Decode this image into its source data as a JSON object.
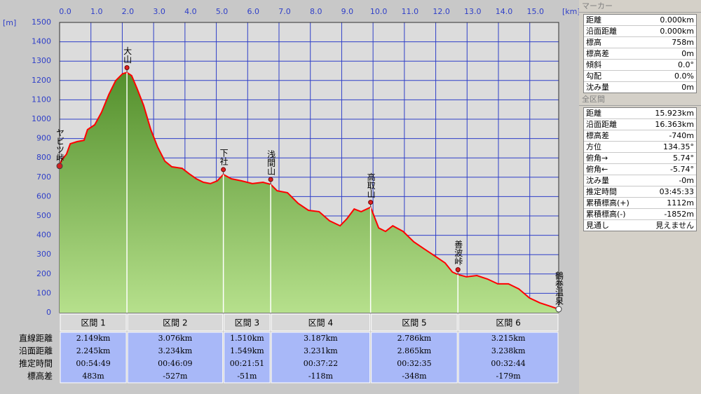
{
  "chart_data": {
    "type": "area",
    "x": [
      0,
      0.07,
      0.22,
      0.34,
      0.56,
      0.78,
      0.89,
      1.12,
      1.34,
      1.57,
      1.79,
      2.01,
      2.149,
      2.3,
      2.46,
      2.68,
      2.91,
      3.13,
      3.36,
      3.58,
      3.91,
      4.14,
      4.36,
      4.59,
      4.81,
      5.03,
      5.225,
      5.48,
      5.81,
      6.15,
      6.49,
      6.735,
      6.94,
      7.27,
      7.61,
      7.94,
      8.28,
      8.61,
      8.95,
      9.17,
      9.4,
      9.62,
      9.922,
      10.18,
      10.4,
      10.63,
      10.96,
      11.3,
      11.63,
      11.97,
      12.3,
      12.53,
      12.708,
      12.98,
      13.31,
      13.65,
      13.98,
      14.32,
      14.65,
      14.99,
      15.32,
      15.66,
      15.923
    ],
    "values": [
      758,
      790,
      819,
      873,
      884,
      891,
      946,
      971,
      1036,
      1127,
      1199,
      1235,
      1241,
      1225,
      1163,
      1072,
      946,
      855,
      783,
      754,
      746,
      717,
      692,
      674,
      667,
      681,
      714,
      692,
      681,
      667,
      674,
      663,
      630,
      620,
      565,
      529,
      522,
      475,
      449,
      486,
      536,
      522,
      545,
      438,
      420,
      449,
      420,
      366,
      330,
      293,
      257,
      210,
      197,
      185,
      192,
      174,
      149,
      149,
      123,
      76,
      51,
      33,
      18
    ],
    "xlim": [
      0,
      15.923
    ],
    "ylim": [
      0,
      1500
    ],
    "xticks": [
      {
        "value": 0,
        "label": "0.0"
      },
      {
        "value": 1,
        "label": "1.0"
      },
      {
        "value": 2,
        "label": "2.0"
      },
      {
        "value": 3,
        "label": "3.0"
      },
      {
        "value": 4,
        "label": "4.0"
      },
      {
        "value": 5,
        "label": "5.0"
      },
      {
        "value": 6,
        "label": "6.0"
      },
      {
        "value": 7,
        "label": "7.0"
      },
      {
        "value": 8,
        "label": "8.0"
      },
      {
        "value": 9,
        "label": "9.0"
      },
      {
        "value": 10,
        "label": "10.0"
      },
      {
        "value": 11,
        "label": "11.0"
      },
      {
        "value": 12,
        "label": "12.0"
      },
      {
        "value": 13,
        "label": "13.0"
      },
      {
        "value": 14,
        "label": "14.0"
      },
      {
        "value": 15,
        "label": "15.0"
      }
    ],
    "yticks": [
      0,
      100,
      200,
      300,
      400,
      500,
      600,
      700,
      800,
      900,
      1000,
      1100,
      1200,
      1300,
      1400,
      1500
    ],
    "x_unit": "[km]",
    "y_unit": "[m]",
    "grid": true,
    "line_color": "#ff0000",
    "grid_color": "#2f3fc8",
    "waypoints": [
      {
        "name": "ヤビツ峠",
        "x": 0,
        "elevation": 758
      },
      {
        "name": "大山",
        "x": 2.149,
        "elevation": 1241
      },
      {
        "name": "下社",
        "x": 5.225,
        "elevation": 714
      },
      {
        "name": "浅間山",
        "x": 6.735,
        "elevation": 663
      },
      {
        "name": "高取山",
        "x": 9.922,
        "elevation": 545
      },
      {
        "name": "善波峠",
        "x": 12.708,
        "elevation": 197
      },
      {
        "name": "鶴巻温泉",
        "x": 15.923,
        "elevation": 18
      }
    ]
  },
  "sections": {
    "headers": [
      "区間 1",
      "区間 2",
      "区間 3",
      "区間 4",
      "区間 5",
      "区間 6"
    ],
    "row_labels": [
      "直線距離",
      "沿面距離",
      "推定時間",
      "標高差"
    ],
    "rows": [
      [
        "2.149km",
        "3.076km",
        "1.510km",
        "3.187km",
        "2.786km",
        "3.215km"
      ],
      [
        "2.245km",
        "3.234km",
        "1.549km",
        "3.231km",
        "2.865km",
        "3.238km"
      ],
      [
        "00:54:49",
        "00:46:09",
        "00:21:51",
        "00:37:22",
        "00:32:35",
        "00:32:44"
      ],
      [
        "483m",
        "-527m",
        "-51m",
        "-118m",
        "-348m",
        "-179m"
      ]
    ]
  },
  "marker_panel": {
    "title": "マーカー",
    "rows": [
      [
        "距離",
        "0.000km"
      ],
      [
        "沿面距離",
        "0.000km"
      ],
      [
        "標高",
        "758m"
      ],
      [
        "標高差",
        "0m"
      ],
      [
        "傾斜",
        "0.0°"
      ],
      [
        "勾配",
        "0.0%"
      ],
      [
        "沈み量",
        "0m"
      ]
    ]
  },
  "total_panel": {
    "title": "全区間",
    "rows": [
      [
        "距離",
        "15.923km"
      ],
      [
        "沿面距離",
        "16.363km"
      ],
      [
        "標高差",
        "-740m"
      ],
      [
        "方位",
        "134.35°"
      ],
      [
        "俯角→",
        "5.74°"
      ],
      [
        "俯角←",
        "-5.74°"
      ],
      [
        "沈み量",
        "-0m"
      ],
      [
        "推定時間",
        "03:45:33"
      ],
      [
        "累積標高(+)",
        "1112m"
      ],
      [
        "累積標高(-)",
        "-1852m"
      ],
      [
        "見通し",
        "見えません"
      ]
    ]
  }
}
